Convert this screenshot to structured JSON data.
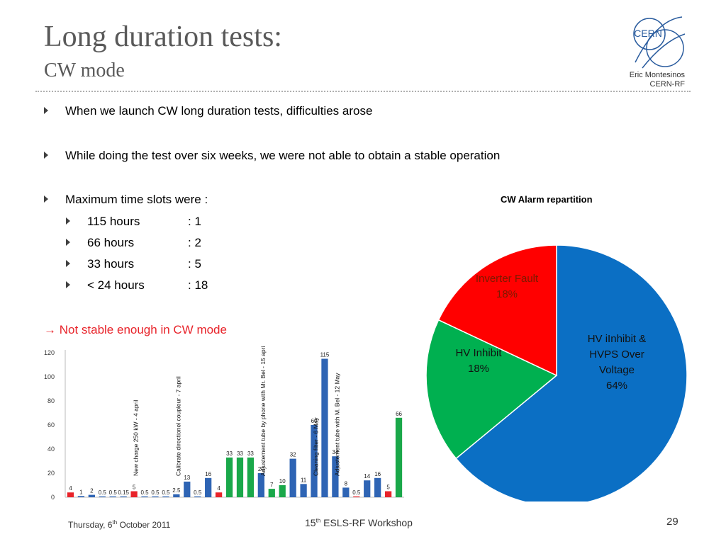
{
  "title": "Long duration tests:",
  "subtitle": "CW mode",
  "author": {
    "name": "Eric Montesinos",
    "org": "CERN-RF"
  },
  "logo_text": "CERN",
  "bullets": [
    "When we launch CW long duration tests, difficulties arose",
    "While doing the test over six weeks, we were not able to obtain a stable operation",
    "Maximum time slots were :"
  ],
  "slots": [
    {
      "label": "115 hours",
      "value": ": 1"
    },
    {
      "label": "66 hours",
      "value": ": 2"
    },
    {
      "label": "33 hours",
      "value": ": 5"
    },
    {
      "label": "< 24 hours",
      "value": ": 18"
    }
  ],
  "conclusion": "→ Not stable enough in CW mode",
  "footer": {
    "date_pre": "Thursday, 6",
    "date_sup": "th",
    "date_post": " October 2011",
    "ws_pre": "15",
    "ws_sup": "th",
    "ws_post": " ESLS-RF Workshop",
    "page": "29"
  },
  "colors": {
    "red": "#e8232a",
    "green": "#1aa84a",
    "blue": "#2e64b4",
    "pie_blue": "#0b6fc4",
    "pie_green": "#00b050",
    "pie_red": "#ff0000"
  },
  "chart_data": [
    {
      "type": "bar",
      "title": "",
      "ylim": [
        0,
        120
      ],
      "yticks": [
        0,
        20,
        40,
        60,
        80,
        100,
        120
      ],
      "values": [
        4,
        1,
        2,
        0.5,
        0.5,
        0.15,
        5,
        0.5,
        0.5,
        0.5,
        2.5,
        13,
        0.5,
        16,
        4,
        33,
        33,
        33,
        20,
        7,
        10,
        32,
        11,
        60,
        115,
        34,
        8,
        0.5,
        14,
        16,
        5,
        66
      ],
      "value_labels": [
        "4",
        "1",
        "2",
        "0.5",
        "0.5",
        "0.15",
        "5",
        "0.5",
        "0.5",
        "0.5",
        "2.5",
        "13",
        "0.5",
        "16",
        "4",
        "33",
        "33",
        "33",
        "20",
        "7",
        "10",
        "32",
        "11",
        "60",
        "115",
        "34",
        "8",
        "0.5",
        "14",
        "16",
        "5",
        "66"
      ],
      "bar_colors": [
        "red",
        "blue",
        "blue",
        "blue",
        "blue",
        "blue",
        "red",
        "blue",
        "blue",
        "blue",
        "blue",
        "blue",
        "blue",
        "blue",
        "red",
        "green",
        "green",
        "green",
        "blue",
        "green",
        "green",
        "blue",
        "blue",
        "blue",
        "blue",
        "blue",
        "blue",
        "red",
        "blue",
        "blue",
        "red",
        "green"
      ],
      "annotations": [
        {
          "after_index": 6,
          "text": "New charge 250 kW - 4 april"
        },
        {
          "after_index": 10,
          "text": "Calibrate directionel coupleur - 7 april"
        },
        {
          "after_index": 18,
          "text": "Adjustement tube by phone with Mr. Bel - 15 april"
        },
        {
          "after_index": 23,
          "text": "Cleaning filter - 6 May"
        },
        {
          "after_index": 25,
          "text": "Adjustement tube with M. Bel - 12 May"
        }
      ]
    },
    {
      "type": "pie",
      "title": "CW Alarm repartition",
      "slices": [
        {
          "label_lines": [
            "HV iInhibit &",
            "HVPS Over",
            "Voltage",
            "64%"
          ],
          "value": 64,
          "color": "#0b6fc4"
        },
        {
          "label_lines": [
            "HV Inhibit",
            "18%"
          ],
          "value": 18,
          "color": "#00b050"
        },
        {
          "label_lines": [
            "Inverter Fault",
            "18%"
          ],
          "value": 18,
          "color": "#ff0000"
        }
      ]
    }
  ]
}
